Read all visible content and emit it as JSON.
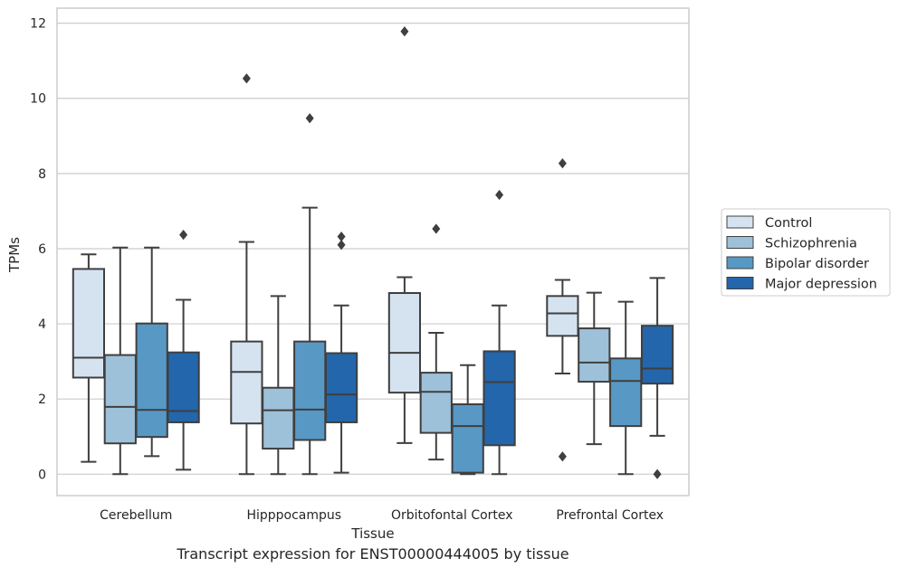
{
  "caption": "Transcript expression for ENST00000444005 by tissue",
  "chart_data": {
    "type": "boxplot",
    "xlabel": "Tissue",
    "ylabel": "TPMs",
    "ylim": [
      -0.57,
      12.4
    ],
    "yticks": [
      0,
      2,
      4,
      6,
      8,
      10,
      12
    ],
    "grid": "horizontal",
    "legend_placement": "right",
    "categories": [
      "Cerebellum",
      "Hipppocampus",
      "Orbitofontal Cortex",
      "Prefrontal Cortex"
    ],
    "series": [
      {
        "name": "Control",
        "color": "#d5e3f1",
        "boxes": [
          {
            "whislo": 0.33,
            "q1": 2.57,
            "med": 3.1,
            "q3": 5.46,
            "whishi": 5.85,
            "fliers": []
          },
          {
            "whislo": 0.0,
            "q1": 1.35,
            "med": 2.72,
            "q3": 3.53,
            "whishi": 6.18,
            "fliers": [
              10.53
            ]
          },
          {
            "whislo": 0.83,
            "q1": 2.17,
            "med": 3.23,
            "q3": 4.82,
            "whishi": 5.24,
            "fliers": [
              11.78
            ]
          },
          {
            "whislo": 2.68,
            "q1": 3.68,
            "med": 4.28,
            "q3": 4.74,
            "whishi": 5.17,
            "fliers": [
              8.27,
              0.47
            ]
          }
        ]
      },
      {
        "name": "Schizophrenia",
        "color": "#9ec1da",
        "boxes": [
          {
            "whislo": 0.0,
            "q1": 0.82,
            "med": 1.79,
            "q3": 3.17,
            "whishi": 6.03,
            "fliers": []
          },
          {
            "whislo": 0.0,
            "q1": 0.68,
            "med": 1.7,
            "q3": 2.3,
            "whishi": 4.74,
            "fliers": []
          },
          {
            "whislo": 0.39,
            "q1": 1.1,
            "med": 2.19,
            "q3": 2.7,
            "whishi": 3.76,
            "fliers": [
              6.53
            ]
          },
          {
            "whislo": 0.8,
            "q1": 2.46,
            "med": 2.97,
            "q3": 3.88,
            "whishi": 4.83,
            "fliers": []
          }
        ]
      },
      {
        "name": "Bipolar disorder",
        "color": "#5898c5",
        "boxes": [
          {
            "whislo": 0.48,
            "q1": 0.99,
            "med": 1.71,
            "q3": 4.01,
            "whishi": 6.03,
            "fliers": []
          },
          {
            "whislo": 0.0,
            "q1": 0.91,
            "med": 1.72,
            "q3": 3.53,
            "whishi": 7.09,
            "fliers": [
              9.47
            ]
          },
          {
            "whislo": 0.0,
            "q1": 0.04,
            "med": 1.28,
            "q3": 1.86,
            "whishi": 2.9,
            "fliers": []
          },
          {
            "whislo": 0.0,
            "q1": 1.28,
            "med": 2.48,
            "q3": 3.08,
            "whishi": 4.59,
            "fliers": []
          }
        ]
      },
      {
        "name": "Major depression",
        "color": "#2366ab",
        "boxes": [
          {
            "whislo": 0.12,
            "q1": 1.38,
            "med": 1.68,
            "q3": 3.24,
            "whishi": 4.64,
            "fliers": [
              6.37
            ]
          },
          {
            "whislo": 0.04,
            "q1": 1.38,
            "med": 2.12,
            "q3": 3.22,
            "whishi": 4.49,
            "fliers": [
              6.32,
              6.1
            ]
          },
          {
            "whislo": 0.0,
            "q1": 0.77,
            "med": 2.45,
            "q3": 3.27,
            "whishi": 4.49,
            "fliers": [
              7.43
            ]
          },
          {
            "whislo": 1.02,
            "q1": 2.41,
            "med": 2.81,
            "q3": 3.95,
            "whishi": 5.22,
            "fliers": [
              0.0
            ]
          }
        ]
      }
    ]
  }
}
